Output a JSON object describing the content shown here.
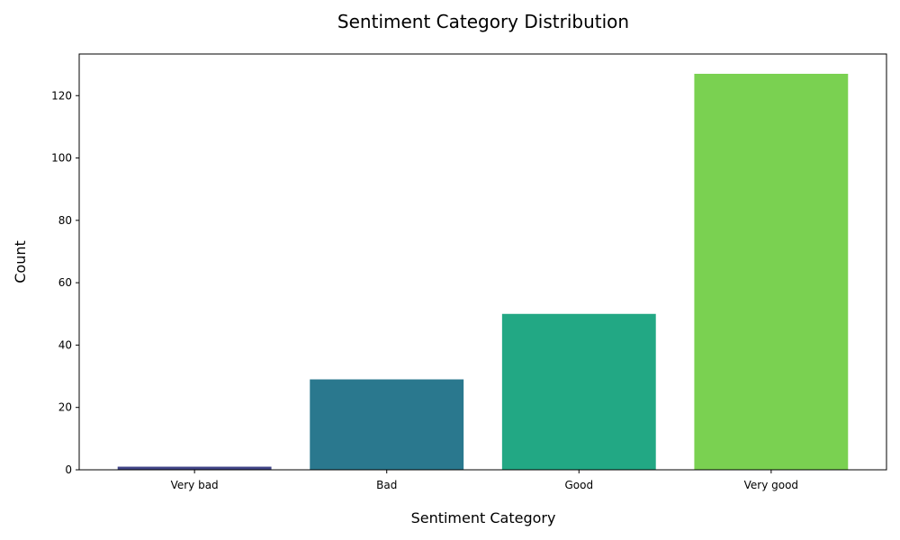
{
  "chart_data": {
    "type": "bar",
    "title": "Sentiment Category Distribution",
    "xlabel": "Sentiment Category",
    "ylabel": "Count",
    "categories": [
      "Very bad",
      "Bad",
      "Good",
      "Very good"
    ],
    "values": [
      1,
      29,
      50,
      127
    ],
    "colors": [
      "#414487",
      "#2a788e",
      "#22a884",
      "#7ad151"
    ],
    "ylim": [
      0,
      133.35
    ],
    "yticks": [
      0,
      20,
      40,
      60,
      80,
      100,
      120
    ],
    "grid": false,
    "legend": "none"
  }
}
